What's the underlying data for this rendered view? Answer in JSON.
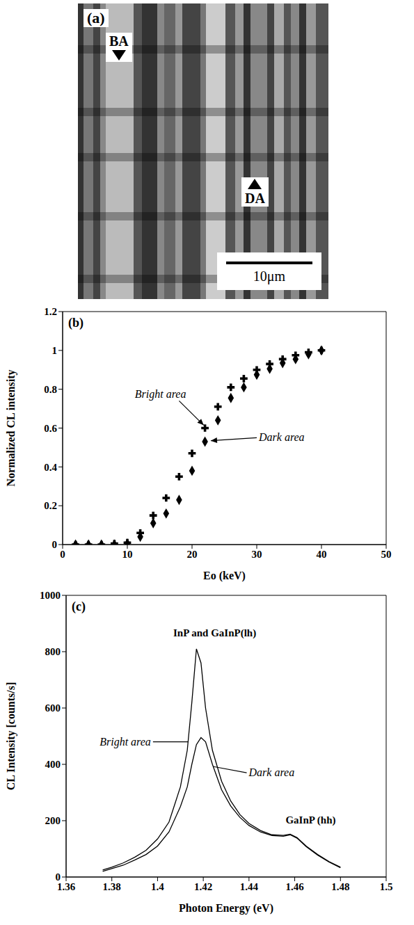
{
  "chart_data": [
    {
      "type": "image",
      "title": "(a)",
      "annotations": [
        "BA",
        "DA",
        "10μm"
      ]
    },
    {
      "type": "scatter",
      "title": "(b)",
      "xlabel": "Eo (keV)",
      "ylabel": "Normalized CL intensity",
      "x": [
        2,
        4,
        6,
        8,
        10,
        12,
        14,
        16,
        18,
        20,
        22,
        24,
        26,
        28,
        30,
        32,
        34,
        36,
        38,
        40
      ],
      "series": [
        {
          "name": "Bright area",
          "color": "#000000",
          "marker": "cross",
          "values": [
            0,
            0,
            0,
            0.005,
            0.01,
            0.06,
            0.15,
            0.24,
            0.35,
            0.47,
            0.6,
            0.71,
            0.81,
            0.855,
            0.9,
            0.93,
            0.955,
            0.975,
            0.99,
            1
          ]
        },
        {
          "name": "Dark area",
          "color": "#000000",
          "marker": "diamond",
          "values": [
            0,
            0,
            0,
            0,
            0.005,
            0.04,
            0.11,
            0.16,
            0.23,
            0.38,
            0.53,
            0.64,
            0.755,
            0.81,
            0.875,
            0.905,
            0.935,
            0.955,
            0.98,
            1
          ]
        }
      ],
      "xlim": [
        0,
        50
      ],
      "xticks": [
        0,
        10,
        20,
        30,
        40,
        50
      ],
      "ylim": [
        0,
        1.2
      ],
      "yticks": [
        0,
        0.2,
        0.4,
        0.6,
        0.8,
        1,
        1.2
      ]
    },
    {
      "type": "line",
      "title": "(c)",
      "xlabel": "Photon Energy (eV)",
      "ylabel": "CL Intensity [counts/s]",
      "annotations": [
        "InP and GaInP(lh)",
        "GaInP (hh)"
      ],
      "x": [
        1.376,
        1.38,
        1.385,
        1.39,
        1.395,
        1.4,
        1.405,
        1.41,
        1.413,
        1.415,
        1.417,
        1.419,
        1.421,
        1.424,
        1.428,
        1.432,
        1.436,
        1.44,
        1.445,
        1.45,
        1.455,
        1.458,
        1.461,
        1.465,
        1.47,
        1.475,
        1.48
      ],
      "series": [
        {
          "name": "Bright area",
          "color": "#000000",
          "line_style": "solid",
          "values": [
            25,
            35,
            50,
            70,
            95,
            135,
            195,
            320,
            450,
            620,
            810,
            760,
            600,
            450,
            340,
            270,
            222,
            190,
            165,
            150,
            148,
            152,
            140,
            110,
            80,
            55,
            35
          ]
        },
        {
          "name": "Dark area",
          "color": "#000000",
          "line_style": "solid",
          "values": [
            20,
            30,
            42,
            60,
            80,
            110,
            160,
            250,
            320,
            400,
            470,
            495,
            480,
            400,
            310,
            252,
            212,
            183,
            160,
            147,
            145,
            150,
            138,
            108,
            78,
            53,
            33
          ]
        }
      ],
      "xlim": [
        1.36,
        1.5
      ],
      "xticks": [
        1.36,
        1.38,
        1.4,
        1.42,
        1.44,
        1.46,
        1.48,
        1.5
      ],
      "ylim": [
        0,
        1000
      ],
      "yticks": [
        0,
        200,
        400,
        600,
        800,
        1000
      ]
    }
  ]
}
